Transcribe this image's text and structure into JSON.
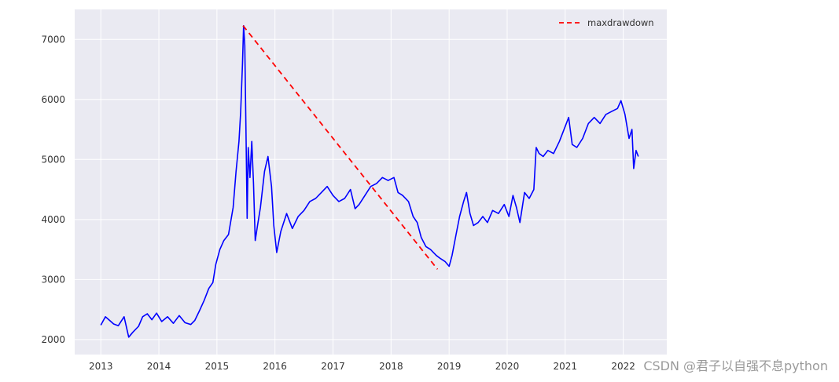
{
  "chart_data": {
    "type": "line",
    "title": "",
    "xlabel": "",
    "ylabel": "",
    "xlim": [
      2012.55,
      2022.75
    ],
    "ylim": [
      1750,
      7500
    ],
    "x_ticks": [
      2013,
      2014,
      2015,
      2016,
      2017,
      2018,
      2019,
      2020,
      2021,
      2022
    ],
    "x_tick_labels": [
      "2013",
      "2014",
      "2015",
      "2016",
      "2017",
      "2018",
      "2019",
      "2020",
      "2021",
      "2022"
    ],
    "y_ticks": [
      2000,
      3000,
      4000,
      5000,
      6000,
      7000
    ],
    "y_tick_labels": [
      "2000",
      "3000",
      "4000",
      "5000",
      "6000",
      "7000"
    ],
    "grid": true,
    "background": "#EAEAF2",
    "legend_position": "top-right",
    "series": [
      {
        "color": "#0000FF",
        "style": "solid",
        "points": [
          [
            2013.0,
            2240
          ],
          [
            2013.08,
            2380
          ],
          [
            2013.15,
            2320
          ],
          [
            2013.22,
            2260
          ],
          [
            2013.3,
            2230
          ],
          [
            2013.4,
            2380
          ],
          [
            2013.48,
            2040
          ],
          [
            2013.55,
            2120
          ],
          [
            2013.65,
            2220
          ],
          [
            2013.72,
            2380
          ],
          [
            2013.8,
            2430
          ],
          [
            2013.88,
            2330
          ],
          [
            2013.96,
            2440
          ],
          [
            2014.05,
            2300
          ],
          [
            2014.15,
            2380
          ],
          [
            2014.25,
            2270
          ],
          [
            2014.35,
            2400
          ],
          [
            2014.45,
            2280
          ],
          [
            2014.55,
            2250
          ],
          [
            2014.62,
            2320
          ],
          [
            2014.7,
            2480
          ],
          [
            2014.78,
            2650
          ],
          [
            2014.86,
            2850
          ],
          [
            2014.93,
            2950
          ],
          [
            2014.98,
            3250
          ],
          [
            2015.05,
            3500
          ],
          [
            2015.12,
            3650
          ],
          [
            2015.2,
            3750
          ],
          [
            2015.28,
            4200
          ],
          [
            2015.33,
            4800
          ],
          [
            2015.38,
            5300
          ],
          [
            2015.41,
            5800
          ],
          [
            2015.44,
            6600
          ],
          [
            2015.46,
            7230
          ],
          [
            2015.48,
            6900
          ],
          [
            2015.5,
            5500
          ],
          [
            2015.52,
            4020
          ],
          [
            2015.54,
            5200
          ],
          [
            2015.57,
            4700
          ],
          [
            2015.6,
            5300
          ],
          [
            2015.63,
            4600
          ],
          [
            2015.66,
            3650
          ],
          [
            2015.7,
            3900
          ],
          [
            2015.75,
            4200
          ],
          [
            2015.82,
            4800
          ],
          [
            2015.88,
            5050
          ],
          [
            2015.94,
            4550
          ],
          [
            2015.98,
            3900
          ],
          [
            2016.03,
            3450
          ],
          [
            2016.1,
            3800
          ],
          [
            2016.2,
            4100
          ],
          [
            2016.3,
            3850
          ],
          [
            2016.4,
            4050
          ],
          [
            2016.5,
            4150
          ],
          [
            2016.6,
            4300
          ],
          [
            2016.7,
            4350
          ],
          [
            2016.8,
            4450
          ],
          [
            2016.9,
            4550
          ],
          [
            2017.0,
            4400
          ],
          [
            2017.1,
            4300
          ],
          [
            2017.2,
            4350
          ],
          [
            2017.3,
            4500
          ],
          [
            2017.38,
            4180
          ],
          [
            2017.45,
            4250
          ],
          [
            2017.55,
            4400
          ],
          [
            2017.65,
            4550
          ],
          [
            2017.75,
            4600
          ],
          [
            2017.85,
            4700
          ],
          [
            2017.95,
            4650
          ],
          [
            2018.05,
            4700
          ],
          [
            2018.12,
            4450
          ],
          [
            2018.2,
            4400
          ],
          [
            2018.3,
            4300
          ],
          [
            2018.38,
            4050
          ],
          [
            2018.45,
            3950
          ],
          [
            2018.52,
            3700
          ],
          [
            2018.6,
            3550
          ],
          [
            2018.68,
            3500
          ],
          [
            2018.78,
            3400
          ],
          [
            2018.85,
            3350
          ],
          [
            2018.93,
            3300
          ],
          [
            2019.0,
            3220
          ],
          [
            2019.05,
            3400
          ],
          [
            2019.12,
            3750
          ],
          [
            2019.18,
            4050
          ],
          [
            2019.25,
            4300
          ],
          [
            2019.3,
            4450
          ],
          [
            2019.36,
            4100
          ],
          [
            2019.42,
            3900
          ],
          [
            2019.5,
            3950
          ],
          [
            2019.58,
            4050
          ],
          [
            2019.66,
            3950
          ],
          [
            2019.75,
            4150
          ],
          [
            2019.85,
            4100
          ],
          [
            2019.95,
            4250
          ],
          [
            2020.03,
            4050
          ],
          [
            2020.1,
            4400
          ],
          [
            2020.16,
            4200
          ],
          [
            2020.22,
            3950
          ],
          [
            2020.3,
            4450
          ],
          [
            2020.38,
            4350
          ],
          [
            2020.46,
            4500
          ],
          [
            2020.5,
            5200
          ],
          [
            2020.55,
            5100
          ],
          [
            2020.62,
            5050
          ],
          [
            2020.7,
            5150
          ],
          [
            2020.8,
            5100
          ],
          [
            2020.9,
            5300
          ],
          [
            2021.0,
            5550
          ],
          [
            2021.06,
            5700
          ],
          [
            2021.12,
            5250
          ],
          [
            2021.2,
            5200
          ],
          [
            2021.3,
            5350
          ],
          [
            2021.4,
            5600
          ],
          [
            2021.5,
            5700
          ],
          [
            2021.6,
            5600
          ],
          [
            2021.7,
            5750
          ],
          [
            2021.8,
            5800
          ],
          [
            2021.9,
            5850
          ],
          [
            2021.96,
            5980
          ],
          [
            2022.03,
            5750
          ],
          [
            2022.1,
            5350
          ],
          [
            2022.15,
            5500
          ],
          [
            2022.18,
            4850
          ],
          [
            2022.22,
            5150
          ],
          [
            2022.26,
            5050
          ]
        ]
      },
      {
        "name": "maxdrawdown",
        "color": "#FF0000",
        "style": "dashed",
        "points": [
          [
            2015.45,
            7230
          ],
          [
            2018.8,
            3170
          ]
        ]
      }
    ]
  },
  "watermark": "CSDN @君子以自强不息python"
}
